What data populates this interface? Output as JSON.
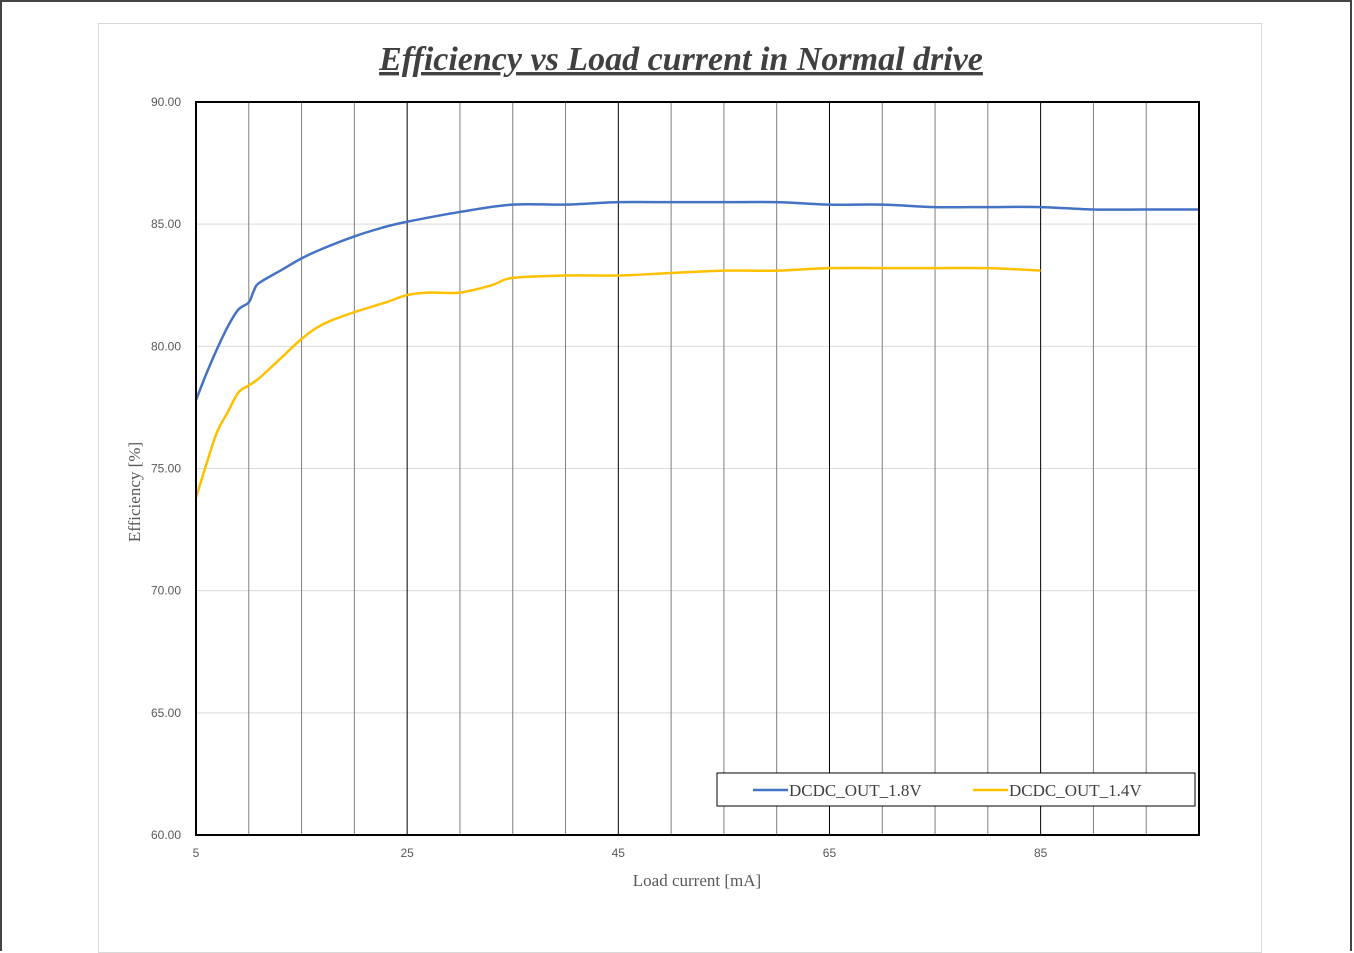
{
  "chart_data": {
    "type": "line",
    "title": "Efficiency vs Load current in Normal drive",
    "xlabel": "Load current [mA]",
    "ylabel": "Efficiency  [%]",
    "xlim": [
      5,
      100
    ],
    "ylim": [
      60,
      90
    ],
    "x_ticks": [
      5,
      25,
      45,
      65,
      85
    ],
    "y_ticks": [
      "60.00",
      "65.00",
      "70.00",
      "75.00",
      "80.00",
      "85.00",
      "90.00"
    ],
    "grid": "vertical",
    "legend_position": "bottom-right",
    "series": [
      {
        "name": "DCDC_OUT_1.8V",
        "color": "#4472c4",
        "points": [
          [
            5,
            77.8
          ],
          [
            6,
            78.9
          ],
          [
            7,
            79.9
          ],
          [
            8,
            80.8
          ],
          [
            9,
            81.5
          ],
          [
            10,
            81.8
          ],
          [
            10.5,
            82.3
          ],
          [
            11,
            82.6
          ],
          [
            13,
            83.1
          ],
          [
            15,
            83.6
          ],
          [
            17,
            84.0
          ],
          [
            20,
            84.5
          ],
          [
            23,
            84.9
          ],
          [
            25,
            85.1
          ],
          [
            30,
            85.5
          ],
          [
            35,
            85.8
          ],
          [
            40,
            85.8
          ],
          [
            45,
            85.9
          ],
          [
            50,
            85.9
          ],
          [
            55,
            85.9
          ],
          [
            60,
            85.9
          ],
          [
            65,
            85.8
          ],
          [
            70,
            85.8
          ],
          [
            75,
            85.7
          ],
          [
            80,
            85.7
          ],
          [
            85,
            85.7
          ],
          [
            90,
            85.6
          ],
          [
            95,
            85.6
          ],
          [
            100,
            85.6
          ]
        ]
      },
      {
        "name": "DCDC_OUT_1.4V",
        "color": "#ffc000",
        "points": [
          [
            5,
            73.8
          ],
          [
            6,
            75.2
          ],
          [
            7,
            76.5
          ],
          [
            8,
            77.3
          ],
          [
            9,
            78.1
          ],
          [
            10,
            78.4
          ],
          [
            11,
            78.7
          ],
          [
            13,
            79.5
          ],
          [
            15,
            80.3
          ],
          [
            17,
            80.9
          ],
          [
            20,
            81.4
          ],
          [
            23,
            81.8
          ],
          [
            25,
            82.1
          ],
          [
            27,
            82.2
          ],
          [
            30,
            82.2
          ],
          [
            33,
            82.5
          ],
          [
            35,
            82.8
          ],
          [
            40,
            82.9
          ],
          [
            45,
            82.9
          ],
          [
            50,
            83.0
          ],
          [
            55,
            83.1
          ],
          [
            60,
            83.1
          ],
          [
            65,
            83.2
          ],
          [
            70,
            83.2
          ],
          [
            75,
            83.2
          ],
          [
            80,
            83.2
          ],
          [
            85,
            83.1
          ]
        ]
      }
    ]
  }
}
